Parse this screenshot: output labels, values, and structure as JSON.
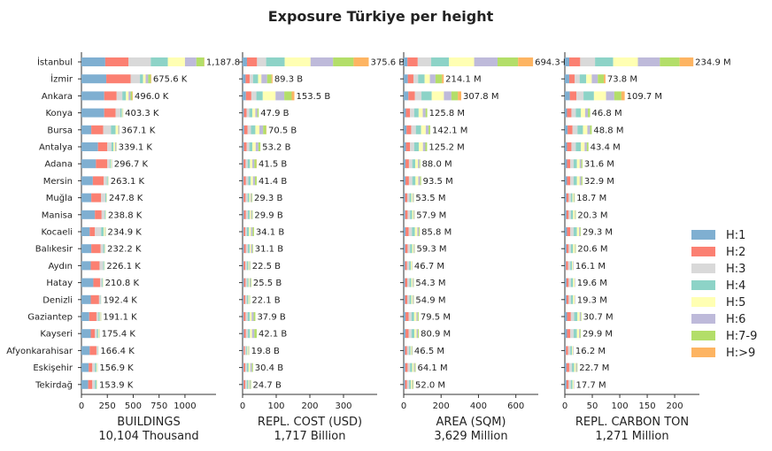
{
  "chart_data": {
    "type": "bar",
    "orientation": "horizontal",
    "stacked": true,
    "title": "Exposure Türkiye per height",
    "categories": [
      "İstanbul",
      "İzmir",
      "Ankara",
      "Konya",
      "Bursa",
      "Antalya",
      "Adana",
      "Mersin",
      "Muğla",
      "Manisa",
      "Kocaeli",
      "Balıkesir",
      "Aydın",
      "Hatay",
      "Denizli",
      "Gaziantep",
      "Kayseri",
      "Afyonkarahisar",
      "Eskişehir",
      "Tekirdağ"
    ],
    "legend": {
      "placement": "right",
      "entries": [
        {
          "label": "H:1",
          "color": "#7fafd1"
        },
        {
          "label": "H:2",
          "color": "#fb8072"
        },
        {
          "label": "H:3",
          "color": "#d9d9d9"
        },
        {
          "label": "H:4",
          "color": "#8dd3c7"
        },
        {
          "label": "H:5",
          "color": "#ffffb3"
        },
        {
          "label": "H:6",
          "color": "#bebada"
        },
        {
          "label": "H:7-9",
          "color": "#b3de69"
        },
        {
          "label": "H:>9",
          "color": "#fdb462"
        }
      ]
    },
    "panels": [
      {
        "xlabel": "BUILDINGS",
        "total": "10,104 Thousand",
        "xlim": [
          0,
          1300
        ],
        "xticks": [
          0,
          250,
          500,
          750,
          1000
        ],
        "labels": [
          "1,187.8 K",
          "675.6 K",
          "496.0 K",
          "403.3 K",
          "367.1 K",
          "339.1 K",
          "296.7 K",
          "263.1 K",
          "247.8 K",
          "238.8 K",
          "234.9 K",
          "232.2 K",
          "226.1 K",
          "210.8 K",
          "192.4 K",
          "191.1 K",
          "175.4 K",
          "166.4 K",
          "156.9 K",
          "153.9 K"
        ],
        "segments": [
          [
            230,
            225,
            215,
            165,
            165,
            110,
            75,
            3
          ],
          [
            240,
            235,
            90,
            30,
            25,
            25,
            25,
            5
          ],
          [
            220,
            120,
            55,
            35,
            25,
            20,
            15,
            6
          ],
          [
            220,
            110,
            45,
            15,
            8,
            3,
            2,
            0
          ],
          [
            95,
            115,
            75,
            45,
            25,
            10,
            2,
            0
          ],
          [
            160,
            90,
            40,
            20,
            15,
            10,
            4,
            0
          ],
          [
            140,
            110,
            25,
            10,
            7,
            4,
            1,
            0
          ],
          [
            110,
            105,
            30,
            10,
            5,
            2,
            1,
            0
          ],
          [
            95,
            95,
            40,
            10,
            5,
            2,
            1,
            0
          ],
          [
            130,
            65,
            30,
            8,
            4,
            1,
            1,
            0
          ],
          [
            80,
            50,
            60,
            25,
            12,
            5,
            3,
            0
          ],
          [
            95,
            90,
            25,
            12,
            6,
            3,
            1,
            0
          ],
          [
            90,
            85,
            35,
            10,
            4,
            1,
            1,
            0
          ],
          [
            115,
            65,
            18,
            7,
            4,
            1,
            1,
            0
          ],
          [
            90,
            80,
            15,
            4,
            2,
            1,
            0,
            0
          ],
          [
            75,
            70,
            20,
            12,
            8,
            4,
            2,
            0
          ],
          [
            90,
            40,
            20,
            12,
            8,
            4,
            2,
            0
          ],
          [
            80,
            65,
            15,
            4,
            2,
            0,
            0,
            0
          ],
          [
            70,
            35,
            25,
            15,
            8,
            3,
            1,
            0
          ],
          [
            65,
            40,
            25,
            15,
            6,
            2,
            1,
            0
          ]
        ]
      },
      {
        "xlabel": "REPL. COST (USD)",
        "total": "1,717 Billion",
        "xlim": [
          0,
          400
        ],
        "xticks": [
          0,
          100,
          200,
          300
        ],
        "labels": [
          "375.6 B",
          "89.3 B",
          "153.5 B",
          "47.9 B",
          "70.5 B",
          "53.2 B",
          "41.5 B",
          "41.4 B",
          "29.3 B",
          "29.9 B",
          "34.1 B",
          "31.1 B",
          "22.5 B",
          "25.5 B",
          "22.1 B",
          "37.9 B",
          "42.1 B",
          "19.8 B",
          "30.4 B",
          "24.7 B"
        ],
        "segments": [
          [
            13,
            30,
            27,
            55,
            77,
            67,
            61,
            45
          ],
          [
            9,
            12,
            10,
            15,
            10,
            17,
            13,
            3
          ],
          [
            10,
            16,
            15,
            19,
            38,
            26,
            22,
            8
          ],
          [
            4,
            8,
            8,
            9,
            9,
            6,
            4,
            0
          ],
          [
            5,
            10,
            10,
            13,
            12,
            11,
            9,
            1
          ],
          [
            4,
            8,
            8,
            9,
            10,
            8,
            6,
            0
          ],
          [
            3,
            6,
            6,
            7,
            7,
            6,
            6,
            1
          ],
          [
            3,
            7,
            7,
            7,
            7,
            6,
            5,
            0
          ],
          [
            3,
            6,
            6,
            5,
            4,
            3,
            2,
            0
          ],
          [
            4,
            6,
            6,
            5,
            4,
            3,
            2,
            0
          ],
          [
            3,
            5,
            5,
            6,
            6,
            5,
            4,
            0
          ],
          [
            4,
            6,
            6,
            5,
            4,
            4,
            2,
            0
          ],
          [
            3,
            5,
            5,
            4,
            3,
            2,
            1,
            0
          ],
          [
            4,
            5,
            5,
            4,
            3,
            3,
            2,
            0
          ],
          [
            3,
            5,
            5,
            4,
            3,
            1,
            1,
            0
          ],
          [
            3,
            6,
            6,
            6,
            6,
            6,
            5,
            0
          ],
          [
            4,
            6,
            6,
            6,
            6,
            7,
            7,
            0
          ],
          [
            3,
            4,
            4,
            3,
            3,
            2,
            1,
            0
          ],
          [
            3,
            5,
            5,
            5,
            5,
            5,
            3,
            0
          ],
          [
            3,
            5,
            5,
            4,
            3,
            3,
            2,
            0
          ]
        ]
      },
      {
        "xlabel": "AREA (SQM)",
        "total": "3,629 Million",
        "xlim": [
          0,
          720
        ],
        "xticks": [
          0,
          200,
          400,
          600
        ],
        "labels": [
          "694.3 M",
          "214.1 M",
          "307.8 M",
          "125.8 M",
          "142.1 M",
          "125.2 M",
          "88.0 M",
          "93.5 M",
          "53.5 M",
          "57.9 M",
          "85.8 M",
          "59.3 M",
          "46.7 M",
          "54.3 M",
          "54.9 M",
          "79.5 M",
          "80.9 M",
          "46.5 M",
          "64.1 M",
          "52.0 M"
        ],
        "segments": [
          [
            20,
            55,
            72,
            95,
            135,
            125,
            110,
            80
          ],
          [
            22,
            30,
            25,
            35,
            28,
            30,
            35,
            9
          ],
          [
            25,
            35,
            35,
            55,
            65,
            40,
            35,
            18
          ],
          [
            12,
            22,
            22,
            24,
            22,
            15,
            9,
            0
          ],
          [
            15,
            25,
            25,
            28,
            25,
            15,
            9,
            0
          ],
          [
            12,
            22,
            22,
            25,
            22,
            13,
            9,
            0
          ],
          [
            10,
            18,
            18,
            16,
            14,
            8,
            4,
            0
          ],
          [
            10,
            18,
            18,
            17,
            15,
            10,
            5,
            0
          ],
          [
            7,
            12,
            12,
            10,
            7,
            4,
            2,
            0
          ],
          [
            8,
            13,
            13,
            11,
            7,
            4,
            2,
            0
          ],
          [
            10,
            17,
            17,
            16,
            13,
            8,
            5,
            0
          ],
          [
            8,
            13,
            13,
            11,
            8,
            4,
            2,
            0
          ],
          [
            7,
            11,
            11,
            9,
            6,
            2,
            1,
            0
          ],
          [
            7,
            12,
            12,
            10,
            7,
            4,
            2,
            0
          ],
          [
            7,
            12,
            12,
            10,
            7,
            4,
            2,
            0
          ],
          [
            10,
            16,
            16,
            14,
            12,
            7,
            5,
            0
          ],
          [
            10,
            16,
            16,
            15,
            12,
            7,
            5,
            0
          ],
          [
            7,
            11,
            11,
            8,
            5,
            3,
            2,
            0
          ],
          [
            8,
            13,
            13,
            11,
            9,
            6,
            4,
            0
          ],
          [
            7,
            11,
            11,
            9,
            7,
            4,
            3,
            0
          ]
        ]
      },
      {
        "xlabel": "REPL. CARBON TON",
        "total": "1,271 Million",
        "xlim": [
          0,
          245
        ],
        "xticks": [
          0,
          50,
          100,
          150,
          200
        ],
        "labels": [
          "234.9 M",
          "73.8 M",
          "109.7 M",
          "46.8 M",
          "48.8 M",
          "43.4 M",
          "31.6 M",
          "32.9 M",
          "18.7 M",
          "20.3 M",
          "29.3 M",
          "20.6 M",
          "16.1 M",
          "19.6 M",
          "19.3 M",
          "30.7 M",
          "29.9 M",
          "16.2 M",
          "22.7 M",
          "17.7 M"
        ],
        "segments": [
          [
            8,
            20,
            27,
            33,
            45,
            40,
            36,
            25
          ],
          [
            8,
            10,
            9,
            12,
            10,
            11,
            11,
            3
          ],
          [
            9,
            12,
            13,
            19,
            22,
            15,
            13,
            6
          ],
          [
            4,
            8,
            8,
            9,
            8,
            5,
            4,
            0
          ],
          [
            5,
            9,
            9,
            10,
            8,
            5,
            3,
            0
          ],
          [
            4,
            8,
            8,
            9,
            7,
            4,
            3,
            0
          ],
          [
            4,
            6,
            6,
            6,
            5,
            3,
            2,
            0
          ],
          [
            4,
            6,
            6,
            6,
            5,
            3,
            2,
            0
          ],
          [
            3,
            4,
            4,
            3,
            2,
            1,
            1,
            0
          ],
          [
            3,
            4,
            4,
            4,
            3,
            1,
            1,
            0
          ],
          [
            4,
            6,
            6,
            6,
            4,
            2,
            1,
            0
          ],
          [
            3,
            4,
            4,
            4,
            3,
            1,
            1,
            0
          ],
          [
            2,
            4,
            4,
            3,
            2,
            1,
            0,
            0
          ],
          [
            3,
            4,
            4,
            4,
            3,
            1,
            0,
            0
          ],
          [
            3,
            4,
            4,
            4,
            3,
            1,
            0,
            0
          ],
          [
            4,
            7,
            6,
            6,
            4,
            2,
            1,
            0
          ],
          [
            4,
            6,
            6,
            6,
            4,
            2,
            1,
            0
          ],
          [
            2,
            4,
            4,
            3,
            2,
            1,
            0,
            0
          ],
          [
            3,
            5,
            5,
            4,
            3,
            2,
            1,
            0
          ],
          [
            3,
            4,
            4,
            3,
            2,
            1,
            0,
            0
          ]
        ]
      }
    ]
  }
}
